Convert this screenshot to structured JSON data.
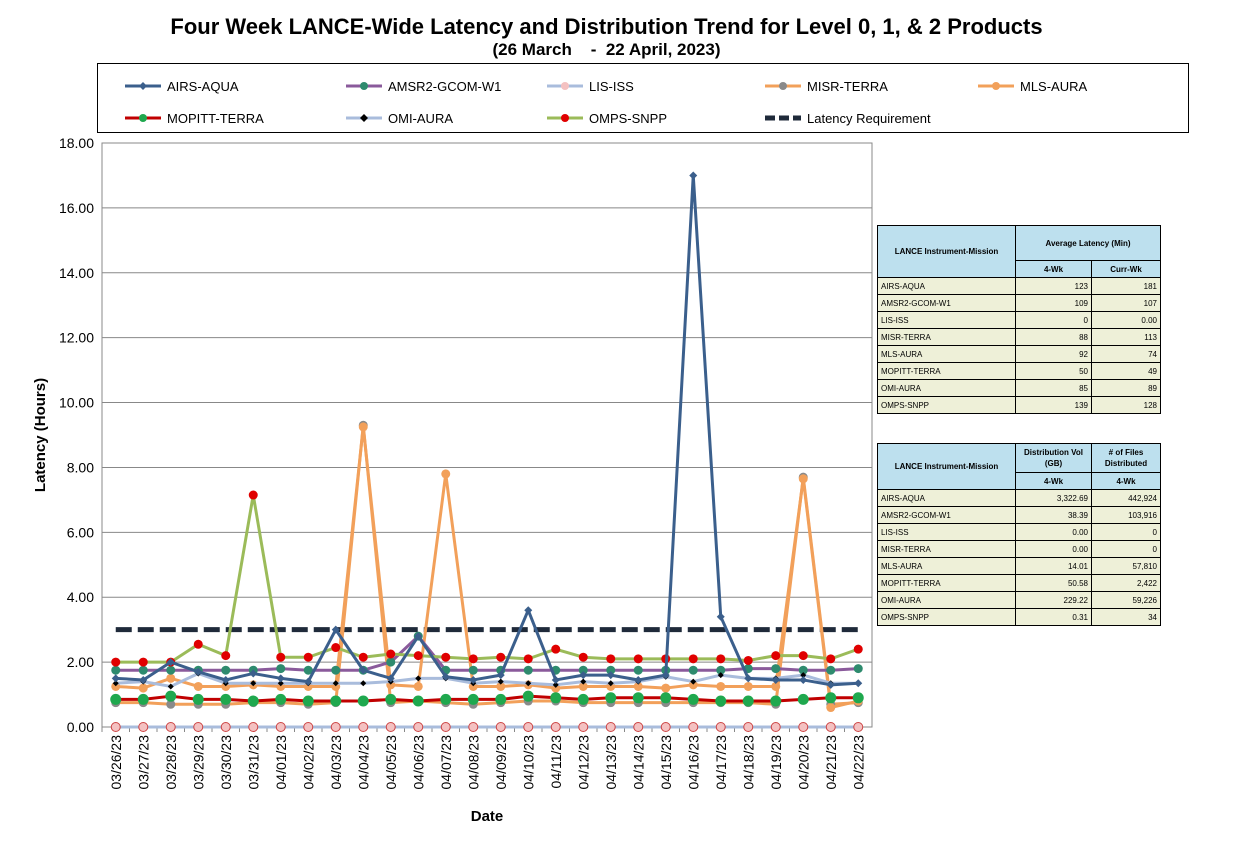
{
  "header": {
    "title": "Four Week LANCE-Wide Latency and Distribution Trend for Level 0, 1, & 2 Products",
    "subtitle": "(26 March    -  22 April, 2023)"
  },
  "legend": {
    "items": [
      {
        "label": "AIRS-AQUA",
        "color": "#3b5f8c",
        "marker": "diamond",
        "fill": "#3b5f8c"
      },
      {
        "label": "AMSR2-GCOM-W1",
        "color": "#8a5a9b",
        "marker": "circle",
        "fill": "#2e8b6e"
      },
      {
        "label": "LIS-ISS",
        "color": "#a9bcdc",
        "marker": "circle",
        "fill": "#f4c1c1"
      },
      {
        "label": "MISR-TERRA",
        "color": "#f2a05a",
        "marker": "circle",
        "fill": "#8a8a8a"
      },
      {
        "label": "MLS-AURA",
        "color": "#f2a05a",
        "marker": "circle",
        "fill": "#f2a05a"
      },
      {
        "label": "MOPITT-TERRA",
        "color": "#c00000",
        "marker": "circle",
        "fill": "#1fa84e"
      },
      {
        "label": "OMI-AURA",
        "color": "#a9bcdc",
        "marker": "diamond",
        "fill": "#000000"
      },
      {
        "label": "OMPS-SNPP",
        "color": "#9bbb59",
        "marker": "circle",
        "fill": "#e00000"
      },
      {
        "label": "Latency Requirement",
        "color": "#1f2a3a",
        "marker": "dash",
        "fill": "#1f2a3a"
      }
    ]
  },
  "chart_data": {
    "type": "line",
    "title": "Four Week LANCE-Wide Latency and Distribution Trend for Level 0, 1, & 2 Products",
    "subtitle": "(26 March    -  22 April, 2023)",
    "xlabel": "Date",
    "ylabel": "Latency (Hours)",
    "ylim": [
      0,
      18
    ],
    "yticks": [
      "0.00",
      "2.00",
      "4.00",
      "6.00",
      "8.00",
      "10.00",
      "12.00",
      "14.00",
      "16.00",
      "18.00"
    ],
    "grid": true,
    "legend_position": "top",
    "x": [
      "03/26/23",
      "03/27/23",
      "03/28/23",
      "03/29/23",
      "03/30/23",
      "03/31/23",
      "04/01/23",
      "04/02/23",
      "04/03/23",
      "04/04/23",
      "04/05/23",
      "04/06/23",
      "04/07/23",
      "04/08/23",
      "04/09/23",
      "04/10/23",
      "04/11/23",
      "04/12/23",
      "04/13/23",
      "04/14/23",
      "04/15/23",
      "04/16/23",
      "04/17/23",
      "04/18/23",
      "04/19/23",
      "04/20/23",
      "04/21/23",
      "04/22/23"
    ],
    "series": [
      {
        "name": "AIRS-AQUA",
        "values": [
          1.5,
          1.45,
          2.0,
          1.7,
          1.45,
          1.65,
          1.5,
          1.4,
          3.0,
          1.75,
          1.5,
          2.8,
          1.55,
          1.45,
          1.6,
          3.6,
          1.45,
          1.6,
          1.6,
          1.45,
          1.6,
          17.0,
          3.4,
          1.5,
          1.45,
          1.45,
          1.3,
          1.35
        ]
      },
      {
        "name": "AMSR2-GCOM-W1",
        "values": [
          1.75,
          1.75,
          1.75,
          1.75,
          1.75,
          1.75,
          1.8,
          1.75,
          1.75,
          1.75,
          2.0,
          2.8,
          1.75,
          1.75,
          1.75,
          1.75,
          1.75,
          1.75,
          1.75,
          1.75,
          1.75,
          1.75,
          1.75,
          1.8,
          1.8,
          1.75,
          1.75,
          1.8
        ]
      },
      {
        "name": "LIS-ISS",
        "values": [
          0,
          0,
          0,
          0,
          0,
          0,
          0,
          0,
          0,
          0,
          0,
          0,
          0,
          0,
          0,
          0,
          0,
          0,
          0,
          0,
          0,
          0,
          0,
          0,
          0,
          0,
          0,
          0
        ]
      },
      {
        "name": "MISR-TERRA",
        "values": [
          0.75,
          0.75,
          0.7,
          0.7,
          0.7,
          0.75,
          0.75,
          0.7,
          0.75,
          9.3,
          0.75,
          0.8,
          0.75,
          0.7,
          0.75,
          0.8,
          0.8,
          0.75,
          0.75,
          0.75,
          0.75,
          0.75,
          0.75,
          0.75,
          0.7,
          7.7,
          0.7,
          0.75
        ]
      },
      {
        "name": "MLS-AURA",
        "values": [
          1.25,
          1.2,
          1.5,
          1.25,
          1.25,
          1.3,
          1.25,
          1.25,
          1.25,
          9.25,
          1.3,
          1.25,
          7.8,
          1.25,
          1.25,
          1.3,
          1.2,
          1.25,
          1.25,
          1.25,
          1.2,
          1.3,
          1.25,
          1.25,
          1.25,
          7.65,
          0.6,
          0.8
        ]
      },
      {
        "name": "MOPITT-TERRA",
        "values": [
          0.85,
          0.85,
          0.95,
          0.85,
          0.85,
          0.8,
          0.85,
          0.8,
          0.8,
          0.8,
          0.85,
          0.8,
          0.85,
          0.85,
          0.85,
          0.95,
          0.9,
          0.85,
          0.9,
          0.9,
          0.9,
          0.85,
          0.8,
          0.8,
          0.8,
          0.85,
          0.9,
          0.9
        ]
      },
      {
        "name": "OMI-AURA",
        "values": [
          1.35,
          1.4,
          1.25,
          1.65,
          1.35,
          1.35,
          1.35,
          1.35,
          1.35,
          1.35,
          1.4,
          1.5,
          1.5,
          1.35,
          1.4,
          1.35,
          1.3,
          1.4,
          1.35,
          1.4,
          1.55,
          1.4,
          1.6,
          1.5,
          1.5,
          1.6,
          1.35,
          1.35
        ]
      },
      {
        "name": "OMPS-SNPP",
        "values": [
          2.0,
          2.0,
          2.0,
          2.55,
          2.2,
          7.15,
          2.15,
          2.15,
          2.45,
          2.15,
          2.25,
          2.2,
          2.15,
          2.1,
          2.15,
          2.1,
          2.4,
          2.15,
          2.1,
          2.1,
          2.1,
          2.1,
          2.1,
          2.05,
          2.2,
          2.2,
          2.1,
          2.4
        ]
      },
      {
        "name": "Latency Requirement",
        "values": [
          3,
          3,
          3,
          3,
          3,
          3,
          3,
          3,
          3,
          3,
          3,
          3,
          3,
          3,
          3,
          3,
          3,
          3,
          3,
          3,
          3,
          3,
          3,
          3,
          3,
          3,
          3,
          3
        ]
      }
    ]
  },
  "table1": {
    "header_col1": "LANCE Instrument-Mission",
    "header_col2": "Average Latency (Min)",
    "sub1": "4-Wk",
    "sub2": "Curr-Wk",
    "rows": [
      {
        "name": "AIRS-AQUA",
        "a": "123",
        "b": "181"
      },
      {
        "name": "AMSR2-GCOM-W1",
        "a": "109",
        "b": "107"
      },
      {
        "name": "LIS-ISS",
        "a": "0",
        "b": "0.00"
      },
      {
        "name": "MISR-TERRA",
        "a": "88",
        "b": "113"
      },
      {
        "name": "MLS-AURA",
        "a": "92",
        "b": "74"
      },
      {
        "name": "MOPITT-TERRA",
        "a": "50",
        "b": "49"
      },
      {
        "name": "OMI-AURA",
        "a": "85",
        "b": "89"
      },
      {
        "name": "OMPS-SNPP",
        "a": "139",
        "b": "128"
      }
    ]
  },
  "table2": {
    "header_col1": "LANCE Instrument-Mission",
    "header_col2": "Distribution Vol (GB)",
    "header_col3": "# of Files Distributed",
    "sub1": "4-Wk",
    "sub2": "4-Wk",
    "rows": [
      {
        "name": "AIRS-AQUA",
        "a": "3,322.69",
        "b": "442,924"
      },
      {
        "name": "AMSR2-GCOM-W1",
        "a": "38.39",
        "b": "103,916"
      },
      {
        "name": "LIS-ISS",
        "a": "0.00",
        "b": "0"
      },
      {
        "name": "MISR-TERRA",
        "a": "0.00",
        "b": "0"
      },
      {
        "name": "MLS-AURA",
        "a": "14.01",
        "b": "57,810"
      },
      {
        "name": "MOPITT-TERRA",
        "a": "50.58",
        "b": "2,422"
      },
      {
        "name": "OMI-AURA",
        "a": "229.22",
        "b": "59,226"
      },
      {
        "name": "OMPS-SNPP",
        "a": "0.31",
        "b": "34"
      }
    ]
  }
}
